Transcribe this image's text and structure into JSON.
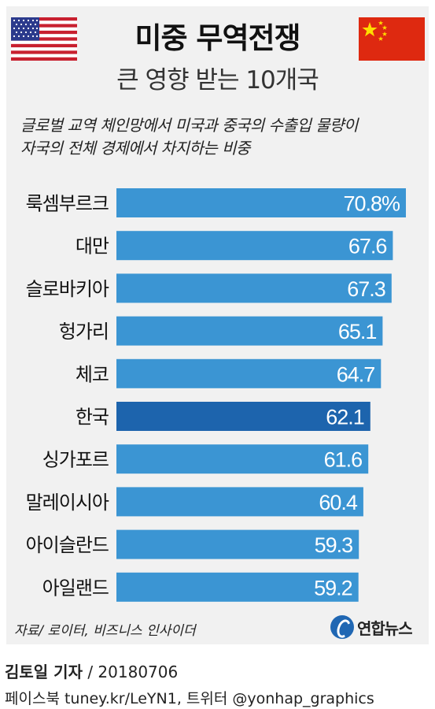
{
  "header": {
    "title": "미중 무역전쟁",
    "subtitle": "큰 영향 받는 10개국",
    "description_line1": "글로벌 교역 체인망에서 미국과 중국의 수출입 물량이",
    "description_line2": "자국의 전체 경제에서 차지하는 비중"
  },
  "flags": {
    "left": "us-flag-icon",
    "right": "china-flag-icon"
  },
  "colors": {
    "bar": "#3b95d3",
    "highlight": "#1d64ad",
    "panel": "#f1f1f1"
  },
  "chart_data": {
    "type": "bar",
    "orientation": "horizontal",
    "categories": [
      "룩셈부르크",
      "대만",
      "슬로바키아",
      "헝가리",
      "체코",
      "한국",
      "싱가포르",
      "말레이시아",
      "아이슬란드",
      "아일랜드"
    ],
    "values": [
      70.8,
      67.6,
      67.3,
      65.1,
      64.7,
      62.1,
      61.6,
      60.4,
      59.3,
      59.2
    ],
    "labels": [
      "70.8%",
      "67.6",
      "67.3",
      "65.1",
      "64.7",
      "62.1",
      "61.6",
      "60.4",
      "59.3",
      "59.2"
    ],
    "highlight": "한국",
    "xlim": [
      0,
      70.8
    ]
  },
  "footer": {
    "source": "자료/ 로이터, 비즈니스 인사이더",
    "logo_text": "연합뉴스",
    "reporter": "김토일 기자",
    "date": " / 20180706",
    "social": "페이스북 tuney.kr/LeYN1, 트위터 @yonhap_graphics"
  }
}
